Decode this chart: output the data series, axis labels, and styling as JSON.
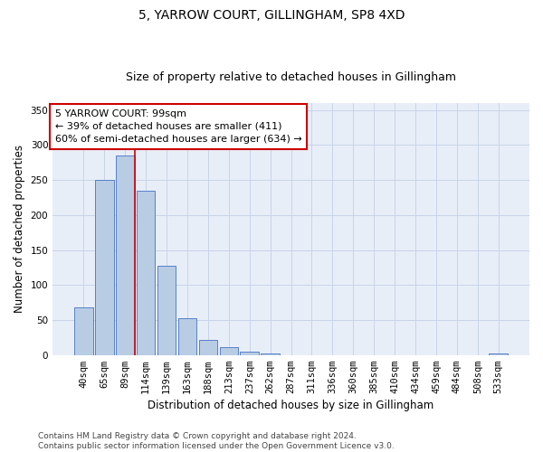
{
  "title": "5, YARROW COURT, GILLINGHAM, SP8 4XD",
  "subtitle": "Size of property relative to detached houses in Gillingham",
  "xlabel": "Distribution of detached houses by size in Gillingham",
  "ylabel": "Number of detached properties",
  "bar_labels": [
    "40sqm",
    "65sqm",
    "89sqm",
    "114sqm",
    "139sqm",
    "163sqm",
    "188sqm",
    "213sqm",
    "237sqm",
    "262sqm",
    "287sqm",
    "311sqm",
    "336sqm",
    "360sqm",
    "385sqm",
    "410sqm",
    "434sqm",
    "459sqm",
    "484sqm",
    "508sqm",
    "533sqm"
  ],
  "bar_values": [
    68,
    250,
    285,
    235,
    127,
    53,
    22,
    11,
    5,
    2,
    0,
    0,
    0,
    0,
    0,
    0,
    0,
    0,
    0,
    0,
    2
  ],
  "bar_color": "#b8cce4",
  "bar_edge_color": "#4472c4",
  "red_line_color": "#cc0000",
  "annotation_line1": "5 YARROW COURT: 99sqm",
  "annotation_line2": "← 39% of detached houses are smaller (411)",
  "annotation_line3": "60% of semi-detached houses are larger (634) →",
  "annotation_box_facecolor": "#ffffff",
  "annotation_box_edgecolor": "#cc0000",
  "ylim": [
    0,
    360
  ],
  "yticks": [
    0,
    50,
    100,
    150,
    200,
    250,
    300,
    350
  ],
  "grid_color": "#c8d4e8",
  "background_color": "#e8eef8",
  "footer_line1": "Contains HM Land Registry data © Crown copyright and database right 2024.",
  "footer_line2": "Contains public sector information licensed under the Open Government Licence v3.0.",
  "title_fontsize": 10,
  "subtitle_fontsize": 9,
  "xlabel_fontsize": 8.5,
  "ylabel_fontsize": 8.5,
  "tick_fontsize": 7.5,
  "annotation_fontsize": 8,
  "footer_fontsize": 6.5
}
